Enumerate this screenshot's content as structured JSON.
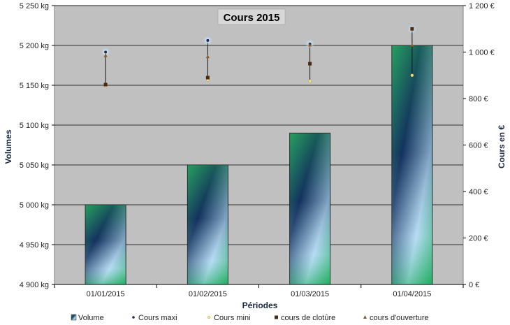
{
  "chart_data": {
    "type": "bar",
    "title": "Cours 2015",
    "xlabel": "Périodes",
    "ylabel": "Volumes",
    "y2label": "Cours en €",
    "categories": [
      "01/01/2015",
      "01/02/2015",
      "01/03/2015",
      "01/04/2015"
    ],
    "ylim": [
      4900,
      5250
    ],
    "y_ticks": [
      4900,
      4950,
      5000,
      5050,
      5100,
      5150,
      5200,
      5250
    ],
    "y_unit": "kg",
    "y2lim": [
      0,
      1200
    ],
    "y2_ticks": [
      0,
      200,
      400,
      600,
      800,
      1000,
      1200
    ],
    "y2_unit": "€",
    "grid": true,
    "legend_position": "bottom",
    "series": [
      {
        "name": "Volume",
        "axis": "left",
        "kind": "bar",
        "values": [
          5000,
          5050,
          5090,
          5200
        ]
      },
      {
        "name": "Cours maxi",
        "axis": "right",
        "kind": "marker",
        "values": [
          1000,
          1050,
          1035,
          1100
        ]
      },
      {
        "name": "Cours mini",
        "axis": "right",
        "kind": "marker",
        "values": [
          855,
          880,
          875,
          900
        ]
      },
      {
        "name": "cours de clotûre",
        "axis": "right",
        "kind": "marker",
        "values": [
          860,
          890,
          950,
          1100
        ]
      },
      {
        "name": "cours d'ouverture",
        "axis": "right",
        "kind": "marker",
        "values": [
          985,
          980,
          1030,
          1030
        ]
      }
    ],
    "colors": {
      "plot_bg": "#c0c0c0",
      "gridline": "#000000",
      "bar_dark": "#13325e",
      "bar_green": "#1fae5e",
      "bar_light": "#b7dcf5",
      "cours_maxi": "#1b2a55",
      "cours_mini": "#f3e28a",
      "cours_cloture": "#4a2a10",
      "cours_ouverture": "#8a5a2a"
    }
  }
}
